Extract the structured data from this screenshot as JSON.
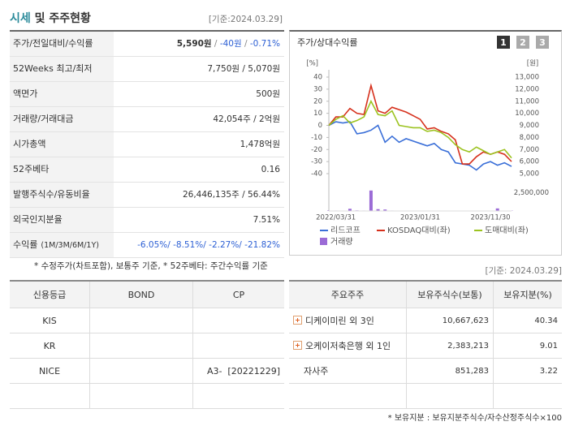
{
  "header": {
    "title_main": "시세",
    "title_rest": "및 주주현황",
    "basis": "[기준:2024.03.29]"
  },
  "quote": {
    "rows": [
      {
        "label": "주가/전일대비/수익률",
        "value_parts": [
          "5,590원",
          " / ",
          "-40원",
          " / ",
          "-0.71%"
        ]
      },
      {
        "label": "52Weeks 최고/최저",
        "value": "7,750원 / 5,070원"
      },
      {
        "label": "액면가",
        "value": "500원"
      },
      {
        "label": "거래량/거래대금",
        "value": "42,054주 / 2억원"
      },
      {
        "label": "시가총액",
        "value": "1,478억원"
      },
      {
        "label": "52주베타",
        "value": "0.16"
      },
      {
        "label": "발행주식수/유동비율",
        "value": "26,446,135주 / 56.44%"
      },
      {
        "label": "외국인지분율",
        "value": "7.51%"
      },
      {
        "label": "수익률",
        "label_sub": "(1M/3M/6M/1Y)",
        "value": "-6.05%/ -8.51%/ -2.27%/ -21.82%"
      }
    ],
    "note": "* 수정주가(차트포함), 보통주 기준, * 52주베타: 주간수익률 기준"
  },
  "chart_panel": {
    "title": "주가/상대수익률",
    "tabs": [
      "1",
      "2",
      "3"
    ]
  },
  "chart_data": {
    "type": "line",
    "y_unit": "[%]",
    "y2_unit": "[원]",
    "x": [
      null,
      "2022/03/31",
      null,
      null,
      null,
      null,
      null,
      null,
      null,
      null,
      null,
      null,
      null,
      "2023/01/31",
      null,
      null,
      null,
      null,
      null,
      null,
      null,
      null,
      null,
      "2023/11/30",
      null,
      null,
      null
    ],
    "ylim": [
      -40,
      40
    ],
    "yticks": [
      40,
      30,
      20,
      10,
      0,
      -10,
      -20,
      -30,
      -40
    ],
    "y2lim": [
      5000,
      13000
    ],
    "y2ticks": [
      {
        "value": 13000,
        "label": "13,000"
      },
      {
        "value": 12000,
        "label": "12,000"
      },
      {
        "value": 11000,
        "label": "11,000"
      },
      {
        "value": 10000,
        "label": "10,000"
      },
      {
        "value": 9000,
        "label": "9,000"
      },
      {
        "value": 8000,
        "label": "8,000"
      },
      {
        "value": 7000,
        "label": "7,000"
      },
      {
        "value": 6000,
        "label": "6,000"
      },
      {
        "value": 5000,
        "label": "5,000"
      }
    ],
    "series": [
      {
        "name": "리드코프",
        "color": "#3a6fd8",
        "values": [
          0,
          3,
          2,
          3,
          -7,
          -6,
          -4,
          0,
          -14,
          -9,
          -14,
          -11,
          -13,
          -15,
          -17,
          -15,
          -20,
          -22,
          -31,
          -32,
          -33,
          -37,
          -32,
          -30,
          -33,
          -31,
          -34
        ]
      },
      {
        "name": "KOSDAQ대비(좌)",
        "color": "#d6301c",
        "values": [
          0,
          7,
          7,
          14,
          10,
          9,
          33,
          12,
          10,
          15,
          13,
          11,
          8,
          5,
          -3,
          -2,
          -5,
          -7,
          -12,
          -32,
          -32,
          -26,
          -22,
          -24,
          -22,
          -24,
          -30
        ]
      },
      {
        "name": "도매대비(좌)",
        "color": "#9cc320",
        "values": [
          0,
          5,
          8,
          2,
          4,
          7,
          20,
          9,
          8,
          12,
          0,
          -1,
          -2,
          -2,
          -5,
          -4,
          -6,
          -10,
          -16,
          -20,
          -22,
          -18,
          -21,
          -24,
          -22,
          -20,
          -27
        ]
      }
    ],
    "volume": {
      "name": "거래량",
      "color": "#9b6bd6",
      "ylim": [
        0,
        3000000
      ],
      "yticks": [
        {
          "value": 2500000,
          "label": "2,500,000"
        }
      ],
      "values": [
        50000,
        60000,
        40000,
        300000,
        80000,
        60000,
        2800000,
        250000,
        200000,
        60000,
        50000,
        40000,
        30000,
        40000,
        30000,
        30000,
        20000,
        30000,
        20000,
        30000,
        20000,
        30000,
        20000,
        40000,
        350000,
        30000,
        30000
      ]
    }
  },
  "credit": {
    "headers": [
      "신용등급",
      "BOND",
      "CP"
    ],
    "rows": [
      {
        "agency": "KIS"
      },
      {
        "agency": "KR"
      },
      {
        "agency": "NICE",
        "cp": "A3-  [20221229]"
      }
    ]
  },
  "holders": {
    "basis": "[기준: 2024.03.29]",
    "headers": [
      "주요주주",
      "보유주식수(보통)",
      "보유지분(%)"
    ],
    "rows": [
      {
        "name": "디케이미린 외 3인",
        "shares": "10,667,623",
        "pct": "40.34"
      },
      {
        "name": "오케이저축은행 외 1인",
        "shares": "2,383,213",
        "pct": "9.01"
      },
      {
        "name": "자사주",
        "shares": "851,283",
        "pct": "3.22"
      }
    ],
    "note": "* 보유지분 : 보유지분주식수/자수산정주식수×100"
  }
}
